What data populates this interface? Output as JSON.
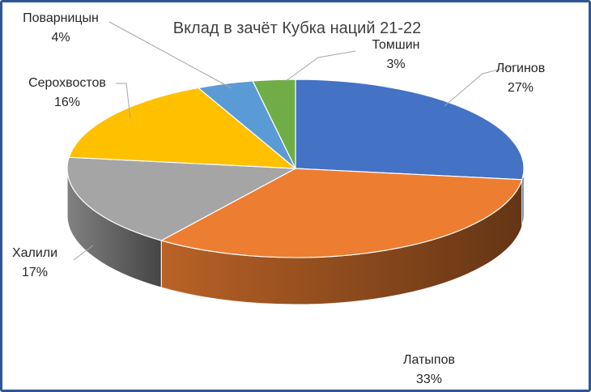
{
  "chart_data": {
    "type": "pie",
    "title": "Вклад в зачёт Кубка наций 21-22",
    "three_d": true,
    "legend": "none",
    "slices": [
      {
        "name": "Логинов",
        "value": 27,
        "label": "27%",
        "color": "#4472c4"
      },
      {
        "name": "Латыпов",
        "value": 33,
        "label": "33%",
        "color": "#ed7d31"
      },
      {
        "name": "Халили",
        "value": 17,
        "label": "17%",
        "color": "#a5a5a5"
      },
      {
        "name": "Серохвостов",
        "value": 16,
        "label": "16%",
        "color": "#ffc000"
      },
      {
        "name": "Поварницын",
        "value": 4,
        "label": "4%",
        "color": "#5b9bd5"
      },
      {
        "name": "Томшин",
        "value": 3,
        "label": "3%",
        "color": "#70ad47"
      }
    ]
  }
}
